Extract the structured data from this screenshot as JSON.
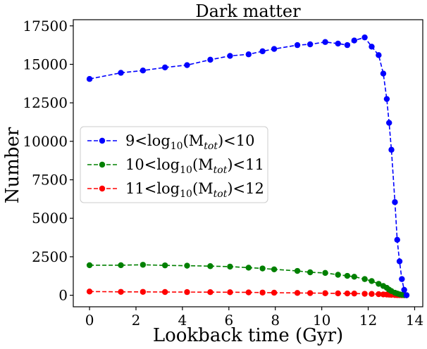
{
  "chart_data": {
    "type": "line",
    "title": "Dark matter",
    "xlabel": "Lookback time (Gyr)",
    "ylabel": "Number",
    "xlim": [
      -0.7,
      14.35
    ],
    "ylim": [
      -750,
      17900
    ],
    "xticks": [
      0,
      2,
      4,
      6,
      8,
      10,
      12,
      14
    ],
    "yticks": [
      0,
      2500,
      5000,
      7500,
      10000,
      12500,
      15000,
      17500
    ],
    "grid": false,
    "legend_position": "center-left",
    "series": [
      {
        "name": "9<log10(Mtot)<10",
        "legend": {
          "pre": "9<log",
          "sub1": "10",
          "mid": "(M",
          "sub2": "tot",
          "post": ")<10"
        },
        "color": "#0000ff",
        "x": [
          0.0,
          1.35,
          2.3,
          3.25,
          4.2,
          5.2,
          6.05,
          6.85,
          7.45,
          7.95,
          8.95,
          9.5,
          10.15,
          10.7,
          11.1,
          11.4,
          11.85,
          12.15,
          12.45,
          12.65,
          12.8,
          12.9,
          13.0,
          13.15,
          13.25,
          13.35,
          13.45,
          13.55,
          13.65
        ],
        "y": [
          14050,
          14450,
          14600,
          14800,
          14950,
          15300,
          15550,
          15650,
          15850,
          16000,
          16250,
          16300,
          16450,
          16350,
          16250,
          16550,
          16750,
          16150,
          15600,
          14400,
          12750,
          11200,
          9450,
          6050,
          3600,
          2200,
          1050,
          350,
          0
        ]
      },
      {
        "name": "10<log10(Mtot)<11",
        "legend": {
          "pre": "10<log",
          "sub1": "10",
          "mid": "(M",
          "sub2": "tot",
          "post": ")<11"
        },
        "color": "#008000",
        "x": [
          0.0,
          1.35,
          2.3,
          3.25,
          4.2,
          5.2,
          6.05,
          6.85,
          7.45,
          7.95,
          8.95,
          9.5,
          10.15,
          10.7,
          11.1,
          11.4,
          11.85,
          12.15,
          12.45,
          12.65,
          12.8,
          12.9,
          13.0,
          13.15,
          13.25,
          13.35,
          13.45,
          13.55,
          13.65
        ],
        "y": [
          1950,
          1950,
          1980,
          1940,
          1920,
          1890,
          1860,
          1790,
          1740,
          1680,
          1580,
          1490,
          1450,
          1330,
          1260,
          1200,
          1050,
          920,
          740,
          600,
          480,
          360,
          270,
          160,
          110,
          60,
          30,
          10,
          0
        ]
      },
      {
        "name": "11<log10(Mtot)<12",
        "legend": {
          "pre": "11<log",
          "sub1": "10",
          "mid": "(M",
          "sub2": "tot",
          "post": ")<12"
        },
        "color": "#ff0000",
        "x": [
          0.0,
          1.35,
          2.3,
          3.25,
          4.2,
          5.2,
          6.05,
          6.85,
          7.45,
          7.95,
          8.95,
          9.5,
          10.15,
          10.7,
          11.1,
          11.4,
          11.85,
          12.15,
          12.45,
          12.65,
          12.8,
          12.9,
          13.0,
          13.15,
          13.25,
          13.35,
          13.45,
          13.55,
          13.65
        ],
        "y": [
          240,
          220,
          220,
          210,
          205,
          200,
          195,
          185,
          175,
          165,
          150,
          140,
          130,
          120,
          115,
          110,
          95,
          85,
          70,
          55,
          45,
          35,
          25,
          15,
          10,
          5,
          3,
          1,
          0
        ]
      }
    ]
  }
}
